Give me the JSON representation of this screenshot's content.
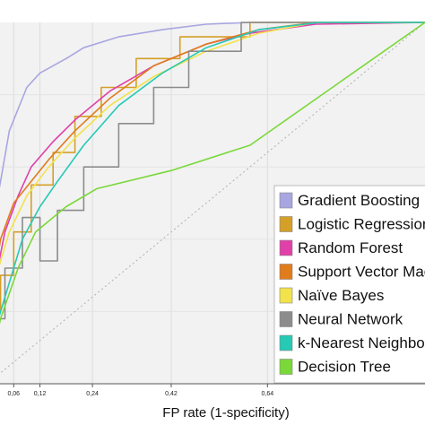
{
  "chart_data": {
    "type": "line",
    "title": "",
    "xlabel": "FP rate (1-specificity)",
    "ylabel": "",
    "xlim": [
      0,
      1
    ],
    "ylim": [
      0,
      1
    ],
    "x_ticks": [
      {
        "value": 0.06,
        "label": "0,06"
      },
      {
        "value": 0.12,
        "label": "0,12"
      },
      {
        "value": 0.24,
        "label": "0,24"
      },
      {
        "value": 0.42,
        "label": "0,42"
      },
      {
        "value": 0.64,
        "label": "0,64"
      }
    ],
    "grid": true,
    "legend_position": "lower-right",
    "series": [
      {
        "name": "Gradient Boosting",
        "color": "#a8a6e0",
        "x": [
          0,
          0.008,
          0.03,
          0.05,
          0.09,
          0.12,
          0.18,
          0.22,
          0.3,
          0.4,
          0.5,
          0.6,
          0.75,
          1.0
        ],
        "y": [
          0,
          0.42,
          0.56,
          0.7,
          0.82,
          0.86,
          0.9,
          0.93,
          0.96,
          0.98,
          0.995,
          1.0,
          1.0,
          1.0
        ]
      },
      {
        "name": "Logistic Regression",
        "color": "#d4a028",
        "x": [
          0,
          0.005,
          0.005,
          0.03,
          0.03,
          0.06,
          0.06,
          0.1,
          0.1,
          0.15,
          0.15,
          0.2,
          0.2,
          0.26,
          0.26,
          0.34,
          0.34,
          0.44,
          0.44,
          0.6,
          0.6,
          1.0
        ],
        "y": [
          0,
          0,
          0.2,
          0.2,
          0.3,
          0.3,
          0.42,
          0.42,
          0.55,
          0.55,
          0.64,
          0.64,
          0.74,
          0.74,
          0.82,
          0.82,
          0.9,
          0.9,
          0.96,
          0.96,
          1.0,
          1.0
        ]
      },
      {
        "name": "Random Forest",
        "color": "#e040a8",
        "x": [
          0,
          0.005,
          0.02,
          0.04,
          0.07,
          0.1,
          0.15,
          0.2,
          0.28,
          0.38,
          0.5,
          0.6,
          0.75,
          1.0
        ],
        "y": [
          0,
          0.12,
          0.3,
          0.42,
          0.52,
          0.6,
          0.67,
          0.73,
          0.81,
          0.88,
          0.94,
          0.97,
          0.995,
          1.0
        ]
      },
      {
        "name": "Support Vector Machine",
        "color": "#e07c1c",
        "x": [
          0,
          0.005,
          0.01,
          0.03,
          0.06,
          0.1,
          0.14,
          0.2,
          0.28,
          0.38,
          0.5,
          0.62,
          0.75,
          1.0
        ],
        "y": [
          0,
          0.1,
          0.25,
          0.4,
          0.5,
          0.56,
          0.62,
          0.7,
          0.79,
          0.88,
          0.94,
          0.98,
          1.0,
          1.0
        ]
      },
      {
        "name": "Naïve Bayes",
        "color": "#f2e24c",
        "x": [
          0,
          0.005,
          0.02,
          0.05,
          0.09,
          0.14,
          0.2,
          0.28,
          0.38,
          0.5,
          0.62,
          0.75,
          1.0
        ],
        "y": [
          0,
          0.15,
          0.3,
          0.42,
          0.52,
          0.6,
          0.68,
          0.77,
          0.85,
          0.92,
          0.97,
          1.0,
          1.0
        ]
      },
      {
        "name": "Neural Network",
        "color": "#8c8c8c",
        "x": [
          0,
          0.005,
          0.005,
          0.04,
          0.04,
          0.08,
          0.08,
          0.12,
          0.12,
          0.16,
          0.16,
          0.22,
          0.22,
          0.3,
          0.3,
          0.38,
          0.38,
          0.46,
          0.46,
          0.58,
          0.58,
          1.0
        ],
        "y": [
          0,
          0,
          0.18,
          0.18,
          0.32,
          0.32,
          0.46,
          0.46,
          0.34,
          0.34,
          0.48,
          0.48,
          0.6,
          0.6,
          0.72,
          0.72,
          0.82,
          0.82,
          0.92,
          0.92,
          1.0,
          1.0
        ]
      },
      {
        "name": "k-Nearest Neighbors",
        "color": "#26c9b4",
        "x": [
          0,
          0.005,
          0.02,
          0.05,
          0.08,
          0.12,
          0.16,
          0.22,
          0.3,
          0.4,
          0.5,
          0.62,
          0.76,
          1.0
        ],
        "y": [
          0,
          0.06,
          0.16,
          0.28,
          0.4,
          0.49,
          0.56,
          0.66,
          0.77,
          0.86,
          0.93,
          0.98,
          1.0,
          1.0
        ]
      },
      {
        "name": "Decision Tree",
        "color": "#7ad83a",
        "x": [
          0,
          0.005,
          0.03,
          0.07,
          0.11,
          0.18,
          0.25,
          0.42,
          0.6,
          1.0
        ],
        "y": [
          0,
          0.05,
          0.18,
          0.32,
          0.42,
          0.49,
          0.54,
          0.59,
          0.66,
          1.0
        ]
      }
    ]
  }
}
